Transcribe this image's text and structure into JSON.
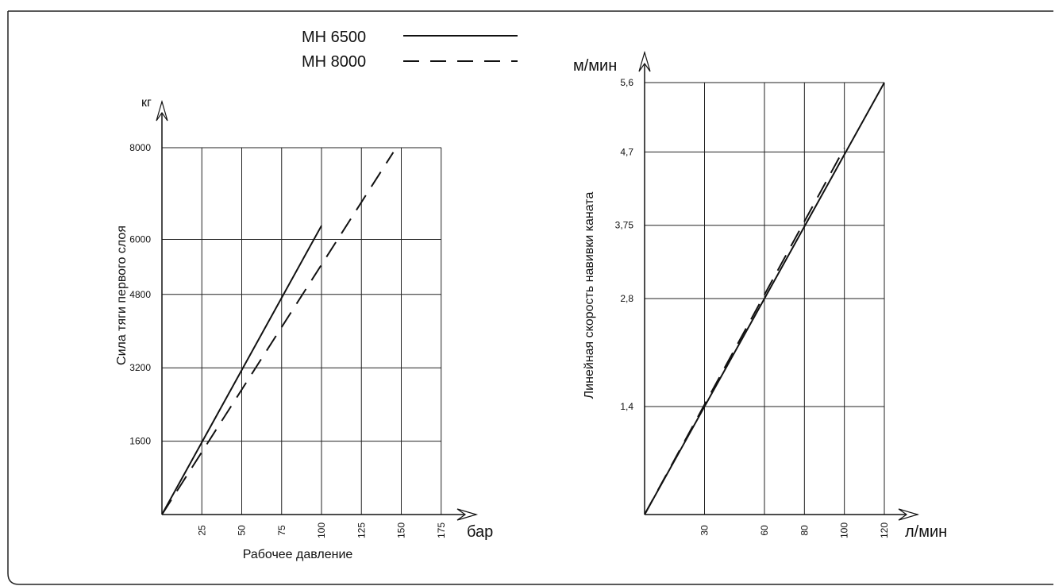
{
  "legend": {
    "items": [
      {
        "label": "МН 6500",
        "style": "solid"
      },
      {
        "label": "МН 8000",
        "style": "dashed"
      }
    ]
  },
  "chart_data": [
    {
      "type": "line",
      "title": "",
      "ylabel": "Сила тяги первого слоя",
      "yunit": "кг",
      "xlabel": "Рабочее давление",
      "xunit": "бар",
      "x_ticks": [
        {
          "value": 25,
          "label": "25"
        },
        {
          "value": 50,
          "label": "50"
        },
        {
          "value": 75,
          "label": "75"
        },
        {
          "value": 100,
          "label": "100"
        },
        {
          "value": 125,
          "label": "125"
        },
        {
          "value": 150,
          "label": "150"
        },
        {
          "value": 175,
          "label": "175"
        }
      ],
      "y_ticks": [
        {
          "value": 1600,
          "label": "1600"
        },
        {
          "value": 3200,
          "label": "3200"
        },
        {
          "value": 4800,
          "label": "4800"
        },
        {
          "value": 6000,
          "label": "6000"
        },
        {
          "value": 8000,
          "label": "8000"
        }
      ],
      "series": [
        {
          "name": "МН 6500",
          "style": "solid",
          "points": [
            [
              0,
              0
            ],
            [
              100,
              6300
            ]
          ]
        },
        {
          "name": "МН 8000",
          "style": "dashed",
          "points": [
            [
              0,
              0
            ],
            [
              145,
              7900
            ]
          ]
        }
      ],
      "grid": true
    },
    {
      "type": "line",
      "title": "",
      "ylabel": "Линейная скорость навивки каната",
      "yunit": "м/мин",
      "xlabel": "",
      "xunit": "л/мин",
      "x_ticks": [
        {
          "value": 30,
          "label": "30"
        },
        {
          "value": 60,
          "label": "60"
        },
        {
          "value": 80,
          "label": "80"
        },
        {
          "value": 100,
          "label": "100"
        },
        {
          "value": 120,
          "label": "120"
        }
      ],
      "y_ticks": [
        {
          "value": 1.4,
          "label": "1,4"
        },
        {
          "value": 2.8,
          "label": "2,8"
        },
        {
          "value": 3.75,
          "label": "3,75"
        },
        {
          "value": 4.7,
          "label": "4,7"
        },
        {
          "value": 5.6,
          "label": "5,6"
        }
      ],
      "series": [
        {
          "name": "МН 6500",
          "style": "solid",
          "points": [
            [
              0,
              0
            ],
            [
              120,
              5.6
            ]
          ]
        },
        {
          "name": "МН 8000",
          "style": "dashed",
          "points": [
            [
              0,
              0
            ],
            [
              100,
              4.75
            ]
          ]
        }
      ],
      "grid": true
    }
  ]
}
